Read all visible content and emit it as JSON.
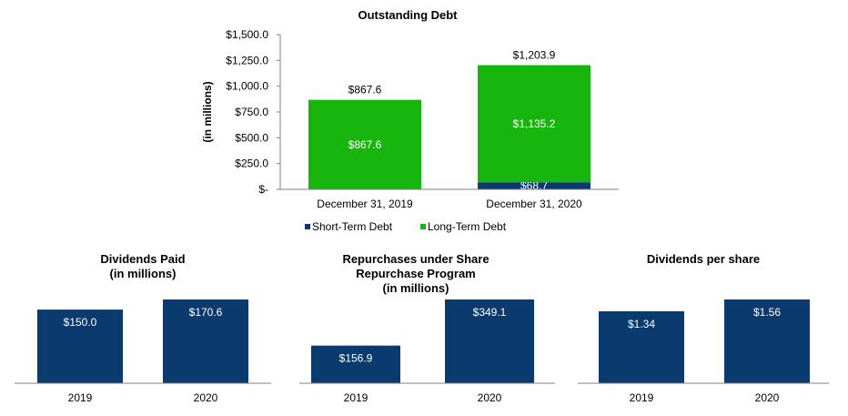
{
  "chart_data": [
    {
      "type": "bar",
      "stacked": true,
      "title": "Outstanding Debt",
      "ylabel": "(in millions)",
      "ylim": [
        0,
        1500
      ],
      "y_ticks": [
        "$-",
        "$250.0",
        "$500.0",
        "$750.0",
        "$1,000.0",
        "$1,250.0",
        "$1,500.0"
      ],
      "categories": [
        "December 31, 2019",
        "December 31, 2020"
      ],
      "series": [
        {
          "name": "Short-Term Debt",
          "values": [
            0,
            68.7
          ],
          "labels": [
            "",
            "$68.7"
          ],
          "color": "#0b3a6e"
        },
        {
          "name": "Long-Term Debt",
          "values": [
            867.6,
            1135.2
          ],
          "labels": [
            "$867.6",
            "$1,135.2"
          ],
          "color": "#19b50f"
        }
      ],
      "totals": [
        867.6,
        1203.9
      ],
      "total_labels": [
        "$867.6",
        "$1,203.9"
      ],
      "legend_position": "bottom",
      "grid": false
    },
    {
      "type": "bar",
      "title_lines": [
        "Dividends Paid",
        "(in millions)"
      ],
      "categories": [
        "2019",
        "2020"
      ],
      "values": [
        150.0,
        170.6
      ],
      "labels": [
        "$150.0",
        "$170.6"
      ],
      "color": "#0b3a6e",
      "grid": false
    },
    {
      "type": "bar",
      "title_lines": [
        "Repurchases under Share",
        "Repurchase Program",
        "(in millions)"
      ],
      "categories": [
        "2019",
        "2020"
      ],
      "values": [
        156.9,
        349.1
      ],
      "labels": [
        "$156.9",
        "$349.1"
      ],
      "color": "#0b3a6e",
      "grid": false
    },
    {
      "type": "bar",
      "title_lines": [
        "Dividends per share"
      ],
      "categories": [
        "2019",
        "2020"
      ],
      "values": [
        1.34,
        1.56
      ],
      "labels": [
        "$1.34",
        "$1.56"
      ],
      "color": "#0b3a6e",
      "grid": false
    }
  ]
}
